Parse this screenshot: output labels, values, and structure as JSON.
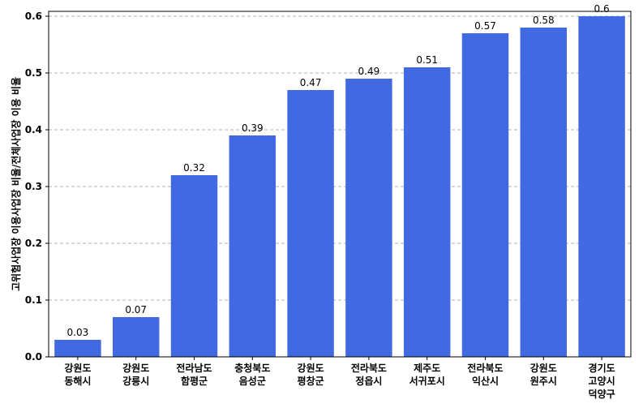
{
  "chart_data": {
    "type": "bar",
    "title": "",
    "xlabel": "",
    "ylabel": "고위험사업장 이용사업장 비율/전체사업장 이용 비율",
    "ylim": [
      0,
      0.6
    ],
    "yticks": [
      0.0,
      0.1,
      0.2,
      0.3,
      0.4,
      0.5,
      0.6
    ],
    "ytick_labels": [
      "0.0",
      "0.1",
      "0.2",
      "0.3",
      "0.4",
      "0.5",
      "0.6"
    ],
    "grid": true,
    "bar_color": "#4169E1",
    "categories": [
      [
        "강원도",
        "동해시"
      ],
      [
        "강원도",
        "강릉시"
      ],
      [
        "전라남도",
        "함평군"
      ],
      [
        "충청북도",
        "음성군"
      ],
      [
        "강원도",
        "평창군"
      ],
      [
        "전라북도",
        "정읍시"
      ],
      [
        "제주도",
        "서귀포시"
      ],
      [
        "전라북도",
        "익산시"
      ],
      [
        "강원도",
        "원주시"
      ],
      [
        "경기도",
        "고양시",
        "덕양구"
      ]
    ],
    "values": [
      0.03,
      0.07,
      0.32,
      0.39,
      0.47,
      0.49,
      0.51,
      0.57,
      0.58,
      0.6
    ],
    "data_labels": [
      "0.03",
      "0.07",
      "0.32",
      "0.39",
      "0.47",
      "0.49",
      "0.51",
      "0.57",
      "0.58",
      "0.6"
    ]
  }
}
